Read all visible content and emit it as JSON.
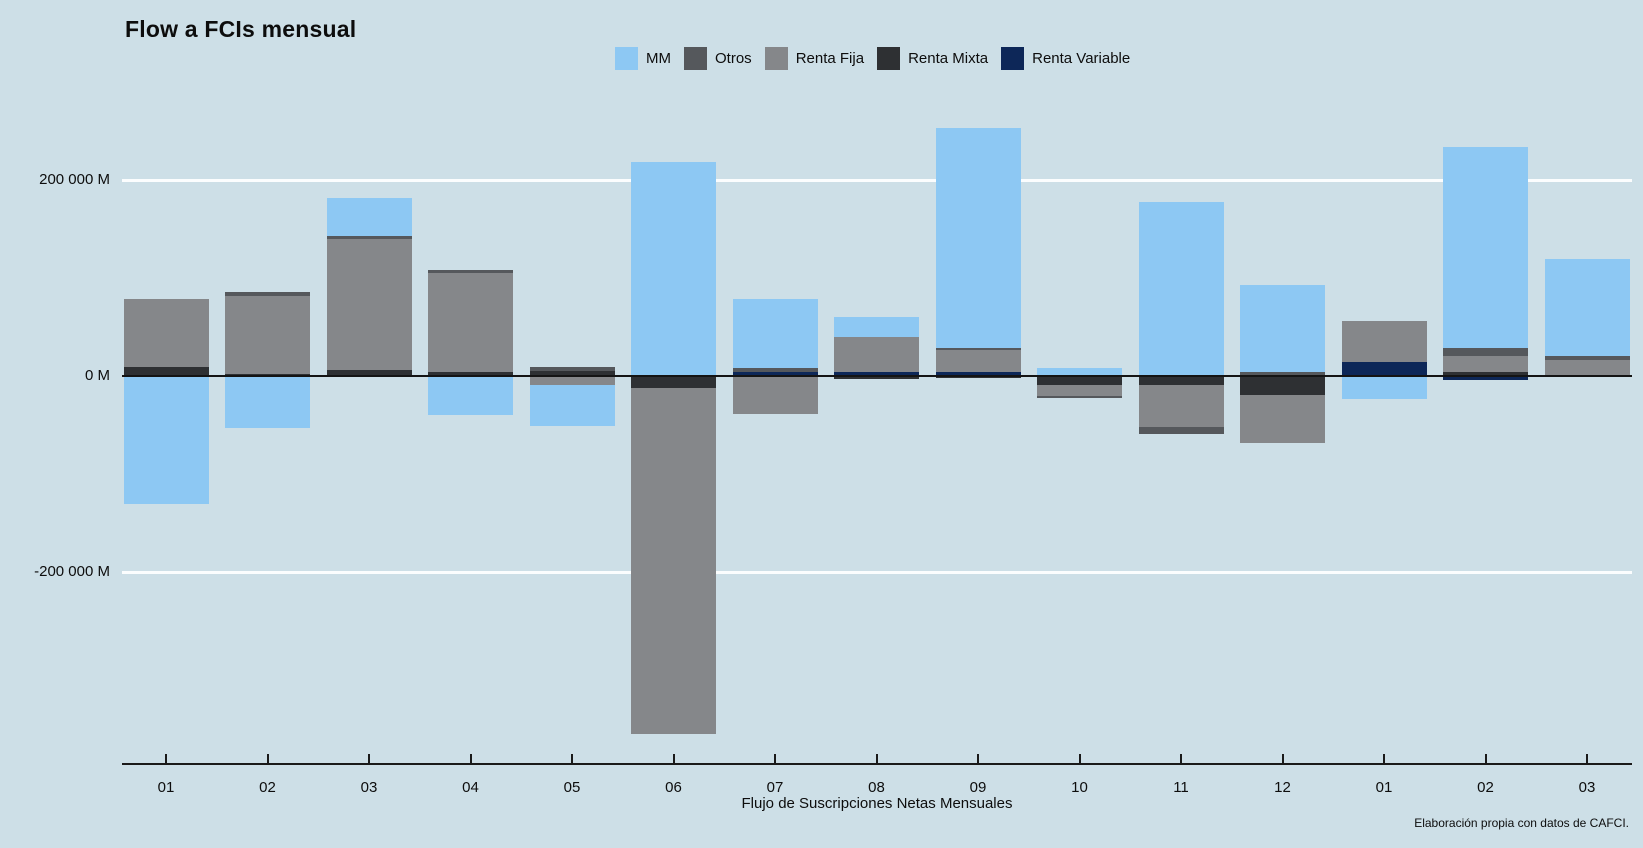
{
  "title": "Flow a FCIs mensual",
  "caption_xlabel": "Flujo de Suscripciones Netas Mensuales",
  "attribution": "Elaboración propia con datos de CAFCI.",
  "colors": {
    "background": "#cddfe7",
    "gridline": "#fbfdfe",
    "zero_line": "#141414",
    "text": "#0d0d0d"
  },
  "chart_data": {
    "type": "bar",
    "stacked": true,
    "title": "Flow a FCIs mensual",
    "xlabel": "Flujo de Suscripciones Netas Mensuales",
    "ylabel": "",
    "unit": "M",
    "grid": "horizontal-white",
    "legend_position": "top",
    "ylim": [
      -400000,
      385000
    ],
    "yticks": [
      {
        "label": "200 000 M",
        "value": 200000
      },
      {
        "label": "0 M",
        "value": 0
      },
      {
        "label": "-200 000 M",
        "value": -200000
      }
    ],
    "categories": [
      "01",
      "02",
      "03",
      "04",
      "05",
      "06",
      "07",
      "08",
      "09",
      "10",
      "11",
      "12",
      "01",
      "02",
      "03"
    ],
    "stack_order_from_zero": [
      "Renta Variable",
      "Renta Mixta",
      "Renta Fija",
      "Otros",
      "MM"
    ],
    "series": [
      {
        "name": "MM",
        "color": "#8dc8f3",
        "values": [
          -131000,
          -53000,
          39000,
          -40000,
          -42000,
          218000,
          71000,
          20000,
          224000,
          8000,
          178000,
          89000,
          -23000,
          205000,
          99000
        ]
      },
      {
        "name": "Otros",
        "color": "#55585c",
        "values": [
          0,
          4000,
          3000,
          3000,
          4000,
          0,
          4000,
          0,
          2000,
          -2000,
          -7000,
          4000,
          0,
          9000,
          4000
        ]
      },
      {
        "name": "Renta Fija",
        "color": "#85878a",
        "values": [
          70000,
          80000,
          134000,
          101000,
          -9000,
          -353000,
          -39000,
          36000,
          23000,
          -11000,
          -43000,
          -49000,
          42000,
          16000,
          16000
        ]
      },
      {
        "name": "Renta Mixta",
        "color": "#2e3033",
        "values": [
          9000,
          2000,
          6000,
          4000,
          5000,
          -12000,
          0,
          -3000,
          -2000,
          -9000,
          -9000,
          -19000,
          0,
          4000,
          0
        ]
      },
      {
        "name": "Renta Variable",
        "color": "#0d2758",
        "values": [
          0,
          0,
          0,
          0,
          0,
          0,
          4000,
          4000,
          4000,
          0,
          0,
          0,
          14000,
          -4000,
          0
        ]
      }
    ]
  }
}
